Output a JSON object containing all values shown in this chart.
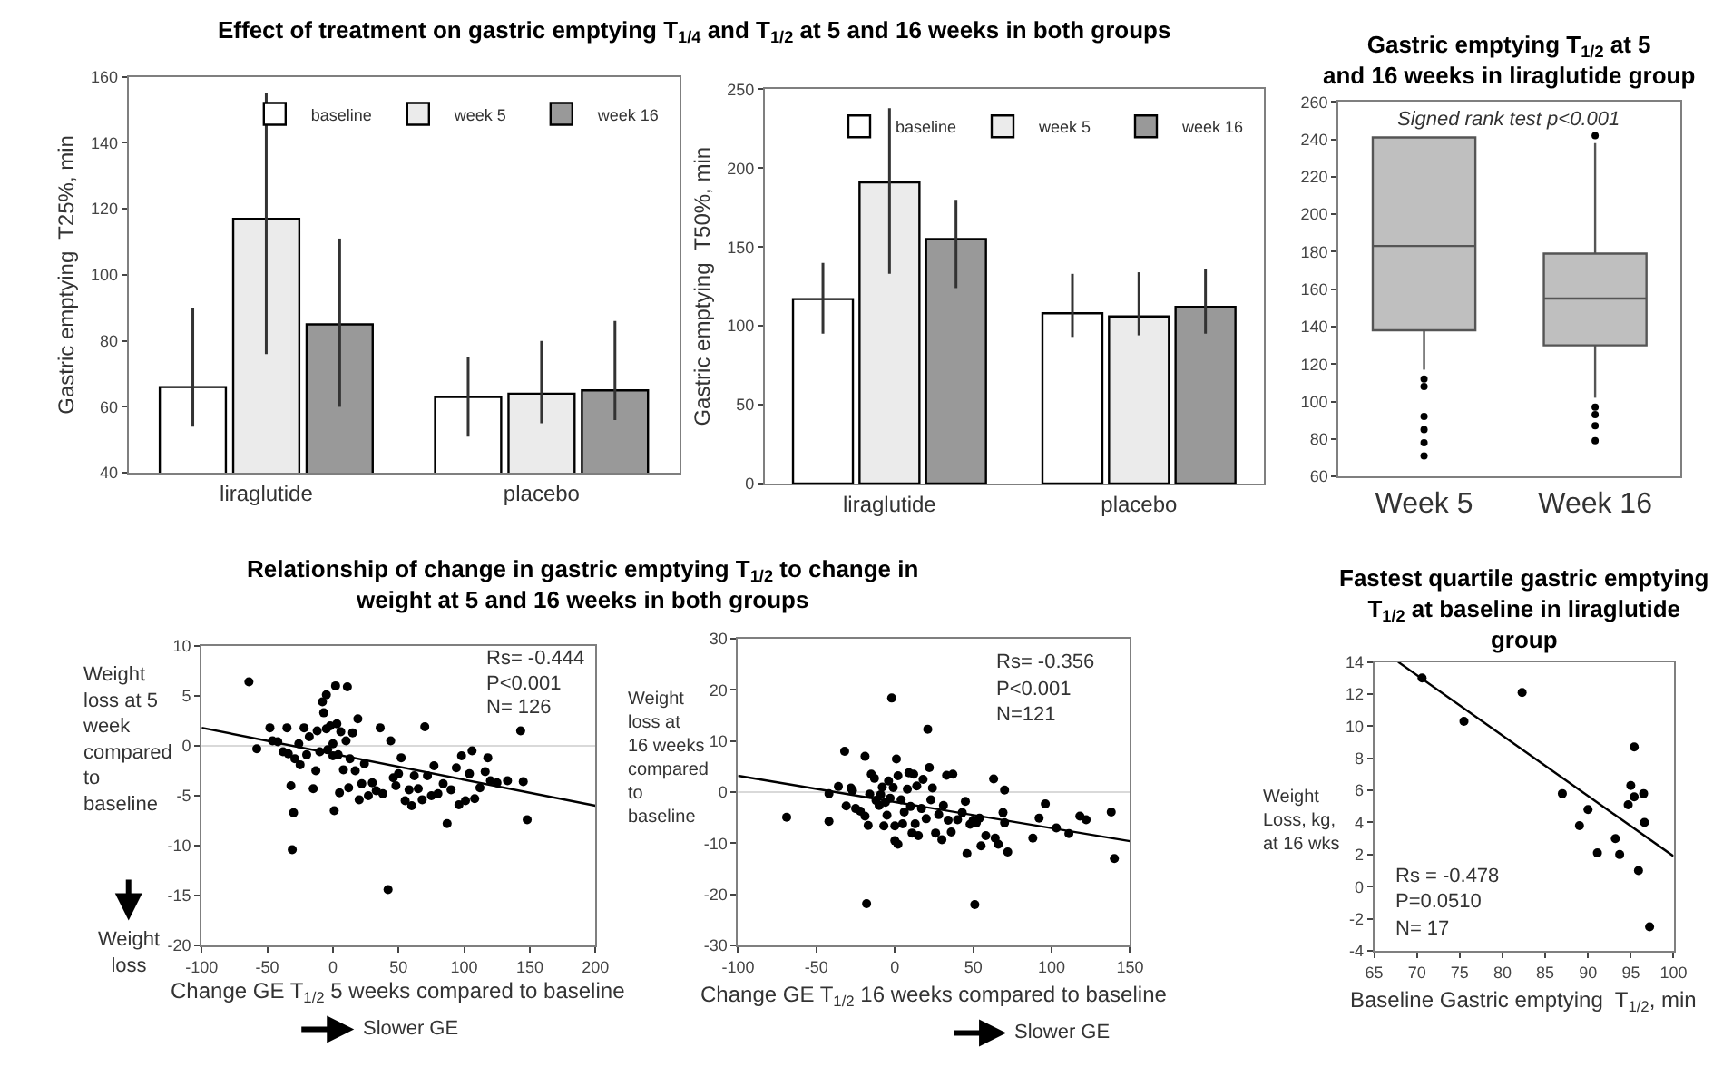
{
  "chart_data": [
    {
      "type": "bar",
      "title": "Effect of treatment on gastric emptying T$_{1/4}$ and T$_{1/2}$ at 5 and 16 weeks in both groups",
      "ylabel": "Gastric emptying  T25%, min",
      "categories": [
        "liraglutide",
        "placebo"
      ],
      "ylim": [
        40,
        160
      ],
      "yticks": [
        40,
        60,
        80,
        100,
        120,
        140,
        160
      ],
      "legend": "top right",
      "series": [
        {
          "name": "baseline",
          "color": "#ffffff",
          "values": [
            66,
            63
          ],
          "errors": [
            [
              54,
              90
            ],
            [
              51,
              75
            ]
          ]
        },
        {
          "name": "week 5",
          "color": "#ebebeb",
          "values": [
            117,
            64
          ],
          "errors": [
            [
              76,
              155
            ],
            [
              55,
              80
            ]
          ]
        },
        {
          "name": "week 16",
          "color": "#999999",
          "values": [
            85,
            65
          ],
          "errors": [
            [
              60,
              111
            ],
            [
              56,
              86
            ]
          ]
        }
      ]
    },
    {
      "type": "bar",
      "ylabel": "Gastric emptying  T50%, min",
      "categories": [
        "liraglutide",
        "placebo"
      ],
      "ylim": [
        0,
        250
      ],
      "yticks": [
        0,
        50,
        100,
        150,
        200,
        250
      ],
      "legend": "top right",
      "series": [
        {
          "name": "baseline",
          "color": "#ffffff",
          "values": [
            117,
            108
          ],
          "errors": [
            [
              95,
              140
            ],
            [
              93,
              133
            ]
          ]
        },
        {
          "name": "week 5",
          "color": "#ebebeb",
          "values": [
            191,
            106
          ],
          "errors": [
            [
              133,
              238
            ],
            [
              94,
              134
            ]
          ]
        },
        {
          "name": "week 16",
          "color": "#999999",
          "values": [
            155,
            112
          ],
          "errors": [
            [
              124,
              180
            ],
            [
              95,
              136
            ]
          ]
        }
      ]
    },
    {
      "type": "box",
      "title": "Gastric emptying T$_{1/2}$ at 5 and 16 weeks in liraglutide group",
      "categories": [
        "Week 5",
        "Week 16"
      ],
      "ylim": [
        60,
        260
      ],
      "yticks": [
        60,
        80,
        100,
        120,
        140,
        160,
        180,
        200,
        220,
        240,
        260
      ],
      "annotations": [
        "Signed rank test p<0.001"
      ],
      "series": [
        {
          "color": "#bfbfbf",
          "boxes": [
            {
              "low": 117,
              "q1": 138,
              "median": 183,
              "q3": 241,
              "high": 241,
              "outliers": [
                112,
                108,
                92,
                85,
                78,
                71
              ]
            },
            {
              "low": 102,
              "q1": 130,
              "median": 155,
              "q3": 179,
              "high": 238,
              "outliers": [
                242,
                97,
                93,
                87,
                79
              ]
            }
          ]
        }
      ]
    },
    {
      "type": "scatter",
      "title": "Relationship of change in gastric emptying T$_{1/2}$ to change in weight at 5 and 16 weeks in both groups",
      "xlabel": "Change GE T$_{1/2}$ 5 weeks compared to baseline",
      "ylabel": "Weight loss at 5 week compared to baseline",
      "xlim": [
        -100,
        200
      ],
      "xticks": [
        -100,
        -50,
        0,
        50,
        100,
        150,
        200
      ],
      "ylim": [
        -20,
        10
      ],
      "yticks": [
        -20,
        -15,
        -10,
        -5,
        0,
        5,
        10
      ],
      "ref_lines": [
        {
          "axis": "y",
          "value": 0,
          "color": "#d9d9d9"
        }
      ],
      "annotations": [
        "Rs= -0.444",
        "P<0.001",
        "N= 126",
        "Weight loss",
        "Slower GE"
      ],
      "series": [
        {
          "color": "#000000",
          "marker": "circle",
          "x": [
            -64,
            -58,
            -48,
            -46,
            -42,
            -38,
            -35,
            -34,
            -32,
            -31,
            -30,
            -29,
            -26,
            -25,
            -22,
            -20,
            -18,
            -15,
            -13,
            -12,
            -10,
            -8,
            -7,
            -5,
            -5,
            -4,
            -2,
            0,
            0,
            1,
            2,
            3,
            4,
            5,
            6,
            8,
            10,
            11,
            12,
            13,
            15,
            17,
            19,
            20,
            22,
            24,
            27,
            30,
            33,
            36,
            38,
            42,
            44,
            46,
            48,
            50,
            52,
            55,
            58,
            60,
            62,
            65,
            68,
            70,
            72,
            75,
            77,
            80,
            84,
            87,
            90,
            94,
            96,
            98,
            101,
            104,
            106,
            108,
            112,
            116,
            118,
            120,
            125,
            133,
            143,
            145,
            148
          ],
          "values": [
            6.4,
            -0.3,
            1.8,
            0.5,
            0.4,
            -0.6,
            1.8,
            -0.8,
            -4.0,
            -10.4,
            -6.7,
            -1.3,
            0.2,
            -1.9,
            1.8,
            -0.9,
            0.9,
            -4.3,
            -2.5,
            1.5,
            -0.6,
            4.4,
            3.3,
            5.1,
            1.7,
            -0.4,
            2.0,
            -1.0,
            0.2,
            -6.5,
            6.0,
            2.2,
            -0.9,
            -4.7,
            1.4,
            -2.4,
            0.5,
            5.9,
            -4.2,
            -1.3,
            1.3,
            -2.5,
            2.7,
            -5.4,
            -3.8,
            -1.8,
            -5.0,
            -3.7,
            -4.5,
            1.8,
            -4.8,
            -14.4,
            0.5,
            -3.2,
            -4.0,
            -2.8,
            -1.2,
            -5.5,
            -4.4,
            -6.0,
            -3.0,
            -4.3,
            -5.4,
            1.9,
            -3.0,
            -5.0,
            -2.0,
            -4.8,
            -3.8,
            -7.8,
            -4.4,
            -2.2,
            -5.9,
            -1.0,
            -5.5,
            -2.8,
            -0.5,
            -5.3,
            -4.2,
            -2.6,
            -1.2,
            -3.5,
            -3.7,
            -3.5,
            1.5,
            -3.6,
            -7.4
          ]
        },
        {
          "type": "line",
          "color": "#000000",
          "x": [
            -100,
            200
          ],
          "values": [
            1.8,
            -6.0
          ]
        }
      ]
    },
    {
      "type": "scatter",
      "xlabel": "Change GE T$_{1/2}$ 16 weeks compared to baseline",
      "ylabel": "Weight loss at 16 weeks compared to baseline",
      "xlim": [
        -100,
        150
      ],
      "xticks": [
        -100,
        -50,
        0,
        50,
        100,
        150
      ],
      "ylim": [
        -30,
        30
      ],
      "yticks": [
        -30,
        -20,
        -10,
        0,
        10,
        20,
        30
      ],
      "ref_lines": [
        {
          "axis": "y",
          "value": 0,
          "color": "#d9d9d9"
        }
      ],
      "annotations": [
        "Rs= -0.356",
        "P<0.001",
        "N=121",
        "Slower GE"
      ],
      "series": [
        {
          "color": "#000000",
          "marker": "circle",
          "x": [
            -69,
            -42,
            -42,
            -36,
            -32,
            -31,
            -28,
            -27,
            -25,
            -22,
            -19,
            -19,
            -18,
            -17,
            -16,
            -15,
            -13,
            -12,
            -10,
            -9,
            -8,
            -7,
            -6,
            -5,
            -4,
            -3,
            -2,
            -1,
            0,
            0,
            1,
            2,
            2,
            4,
            5,
            6,
            8,
            9,
            10,
            11,
            12,
            13,
            14,
            15,
            17,
            18,
            20,
            21,
            22,
            23,
            24,
            26,
            28,
            30,
            31,
            33,
            34,
            36,
            37,
            40,
            43,
            45,
            46,
            48,
            50,
            51,
            52,
            54,
            55,
            58,
            63,
            64,
            66,
            69,
            70,
            70,
            72,
            88,
            92,
            96,
            103,
            111,
            118,
            122,
            138,
            140
          ],
          "values": [
            -4.9,
            -5.7,
            -0.3,
            1.1,
            8.0,
            -2.7,
            0.8,
            0.3,
            -3.2,
            -3.7,
            7.0,
            -4.7,
            -21.8,
            -6.5,
            -0.4,
            3.5,
            2.7,
            -1.6,
            -2.6,
            -0.5,
            1.0,
            -6.6,
            -2.0,
            -4.5,
            2.2,
            -1.2,
            18.4,
            0.9,
            -6.6,
            -9.5,
            6.5,
            3.2,
            -10.2,
            -1.5,
            -6.2,
            -3.9,
            0.6,
            3.8,
            -2.8,
            -8.0,
            3.5,
            -6.2,
            1.2,
            -8.5,
            -3.2,
            2.5,
            -5.2,
            12.3,
            4.8,
            -1.5,
            0.8,
            -8.0,
            -4.4,
            -9.3,
            -2.6,
            3.3,
            -5.5,
            -7.8,
            3.5,
            -5.4,
            -4.0,
            -1.8,
            -12.0,
            -6.3,
            -5.5,
            -22.0,
            -6.0,
            -5.1,
            -10.5,
            -8.5,
            2.6,
            -9.0,
            -10.2,
            -4.0,
            0.4,
            -6.0,
            -11.7,
            -9.0,
            -5.1,
            -2.3,
            -7.0,
            -8.1,
            -4.7,
            -5.4,
            -3.9,
            -13.0
          ]
        },
        {
          "type": "line",
          "color": "#000000",
          "x": [
            -100,
            150
          ],
          "values": [
            3.2,
            -9.6
          ]
        }
      ]
    },
    {
      "type": "scatter",
      "title": "Fastest quartile gastric emptying T$_{1/2}$ at baseline in liraglutide group",
      "xlabel": "Baseline Gastric emptying  T$_{1/2}$, min",
      "ylabel": "Weight Loss, kg, at 16 wks",
      "xlim": [
        65,
        100
      ],
      "xticks": [
        65,
        70,
        75,
        80,
        85,
        90,
        95,
        100
      ],
      "ylim": [
        -4,
        14
      ],
      "yticks": [
        -4,
        -2,
        0,
        2,
        4,
        6,
        8,
        10,
        12,
        14
      ],
      "annotations": [
        "Rs = -0.478",
        "P=0.0510",
        "N= 17"
      ],
      "series": [
        {
          "color": "#000000",
          "marker": "circle",
          "x": [
            70.6,
            75.5,
            82.3,
            87.0,
            89.0,
            90.0,
            91.1,
            93.2,
            93.7,
            94.7,
            95.0,
            95.4,
            95.4,
            95.9,
            96.5,
            96.6,
            97.2
          ],
          "values": [
            13.0,
            10.3,
            12.1,
            5.8,
            3.8,
            4.8,
            2.1,
            3.0,
            2.0,
            5.1,
            6.3,
            8.7,
            5.6,
            1.0,
            5.8,
            4.0,
            -2.5
          ]
        },
        {
          "type": "line",
          "color": "#000000",
          "x": [
            67.8,
            100
          ],
          "values": [
            14,
            1.9
          ]
        }
      ]
    }
  ]
}
